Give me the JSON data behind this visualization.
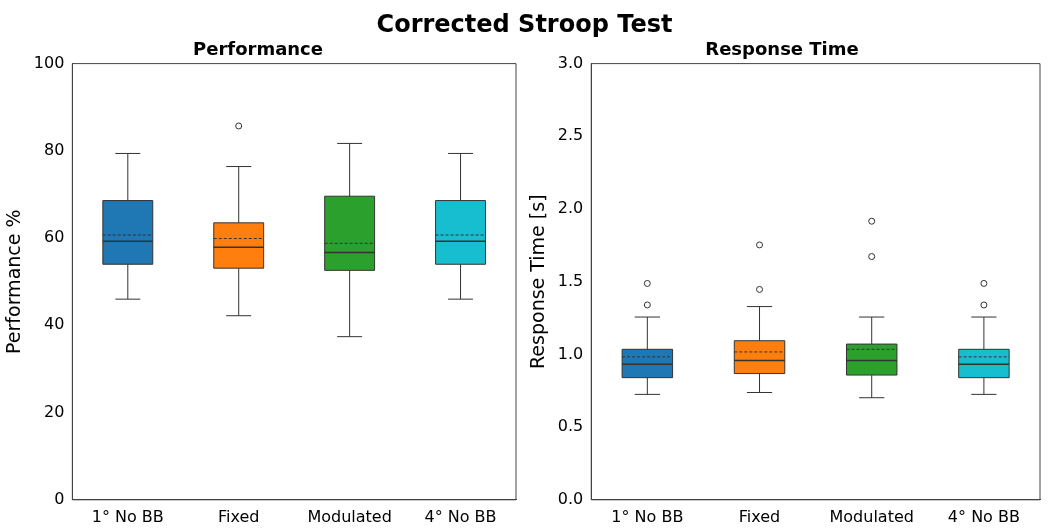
{
  "chart_data": [
    {
      "type": "box",
      "annotations": [
        "Corrected Stroop Test"
      ],
      "title": "Performance",
      "ylabel": "Performance %",
      "categories": [
        "1° No BB",
        "Fixed",
        "Modulated",
        "4° No BB"
      ],
      "colors": [
        "#1f77b4",
        "#ff7f0e",
        "#2ca02c",
        "#17becf"
      ],
      "marker": "circle",
      "ylim": [
        0,
        100
      ],
      "yticks": [
        0,
        20,
        40,
        60,
        80,
        100
      ],
      "boxes": [
        {
          "low": 46.0,
          "q1": 54.0,
          "median": 59.3,
          "q3": 68.6,
          "high": 79.4,
          "mean": 60.7
        },
        {
          "low": 42.2,
          "q1": 53.1,
          "median": 57.9,
          "q3": 63.5,
          "high": 76.4,
          "mean": 59.9,
          "outliers": [
            85.7
          ]
        },
        {
          "low": 37.4,
          "q1": 52.6,
          "median": 56.7,
          "q3": 69.6,
          "high": 81.7,
          "mean": 58.8
        },
        {
          "low": 46.0,
          "q1": 54.0,
          "median": 59.3,
          "q3": 68.6,
          "high": 79.4,
          "mean": 60.7
        }
      ]
    },
    {
      "type": "box",
      "title": "Response Time",
      "ylabel": "Response Time [s]",
      "categories": [
        "1° No BB",
        "Fixed",
        "Modulated",
        "4° No BB"
      ],
      "colors": [
        "#1f77b4",
        "#ff7f0e",
        "#2ca02c",
        "#17becf"
      ],
      "marker": "circle",
      "ylim": [
        0,
        3
      ],
      "yticks": [
        {
          "value": 0,
          "label": "0.0"
        },
        0.5,
        {
          "value": 1,
          "label": "1.0"
        },
        1.5,
        {
          "value": 2,
          "label": "2.0"
        },
        2.5,
        {
          "value": 3,
          "label": "3.0"
        }
      ],
      "boxes": [
        {
          "low": 0.725,
          "q1": 0.84,
          "median": 0.933,
          "q3": 1.035,
          "high": 1.257,
          "mean": 0.983,
          "outliers": [
            1.34,
            1.488
          ]
        },
        {
          "low": 0.738,
          "q1": 0.868,
          "median": 0.958,
          "q3": 1.094,
          "high": 1.329,
          "mean": 1.017,
          "outliers": [
            1.447,
            1.753
          ]
        },
        {
          "low": 0.702,
          "q1": 0.858,
          "median": 0.958,
          "q3": 1.071,
          "high": 1.257,
          "mean": 1.035,
          "outliers": [
            1.673,
            1.916
          ]
        },
        {
          "low": 0.725,
          "q1": 0.84,
          "median": 0.933,
          "q3": 1.035,
          "high": 1.257,
          "mean": 0.983,
          "outliers": [
            1.34,
            1.488
          ]
        }
      ]
    }
  ]
}
